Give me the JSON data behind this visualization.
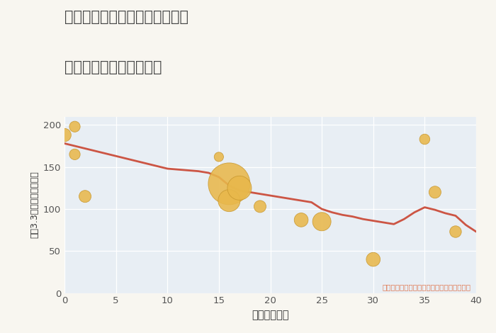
{
  "title_line1": "愛知県名古屋市中村区靖国町の",
  "title_line2": "築年数別中古戸建て価格",
  "xlabel": "築年数（年）",
  "ylabel": "坪（3.3㎡）単価（万円）",
  "background_color": "#f8f6f0",
  "plot_bg_color": "#e8eef4",
  "line_color": "#cc5544",
  "scatter_color": "#e8b84b",
  "scatter_edge_color": "#c89830",
  "annotation_color": "#e07850",
  "annotation_text": "円の大きさは、取引のあった物件面積を示す",
  "xlim": [
    0,
    40
  ],
  "ylim": [
    0,
    210
  ],
  "xticks": [
    0,
    5,
    10,
    15,
    20,
    25,
    30,
    35,
    40
  ],
  "yticks": [
    0,
    50,
    100,
    150,
    200
  ],
  "line_x": [
    0,
    1,
    2,
    3,
    4,
    5,
    6,
    7,
    8,
    9,
    10,
    11,
    12,
    13,
    14,
    15,
    16,
    17,
    18,
    19,
    20,
    21,
    22,
    23,
    24,
    25,
    26,
    27,
    28,
    29,
    30,
    31,
    32,
    33,
    34,
    35,
    36,
    37,
    38,
    39,
    40
  ],
  "line_y": [
    178,
    175,
    172,
    169,
    166,
    163,
    160,
    157,
    154,
    151,
    148,
    147,
    146,
    145,
    143,
    138,
    128,
    122,
    120,
    118,
    116,
    114,
    112,
    110,
    108,
    100,
    96,
    93,
    91,
    88,
    86,
    84,
    82,
    88,
    96,
    102,
    99,
    95,
    92,
    81,
    73
  ],
  "scatter_x": [
    0,
    1,
    1,
    2,
    15,
    16,
    16,
    17,
    19,
    23,
    25,
    30,
    35,
    36,
    38
  ],
  "scatter_y": [
    188,
    198,
    165,
    115,
    162,
    130,
    110,
    125,
    103,
    87,
    85,
    40,
    183,
    120,
    73
  ],
  "scatter_size": [
    180,
    120,
    120,
    150,
    90,
    1800,
    500,
    600,
    150,
    200,
    350,
    200,
    110,
    150,
    140
  ]
}
